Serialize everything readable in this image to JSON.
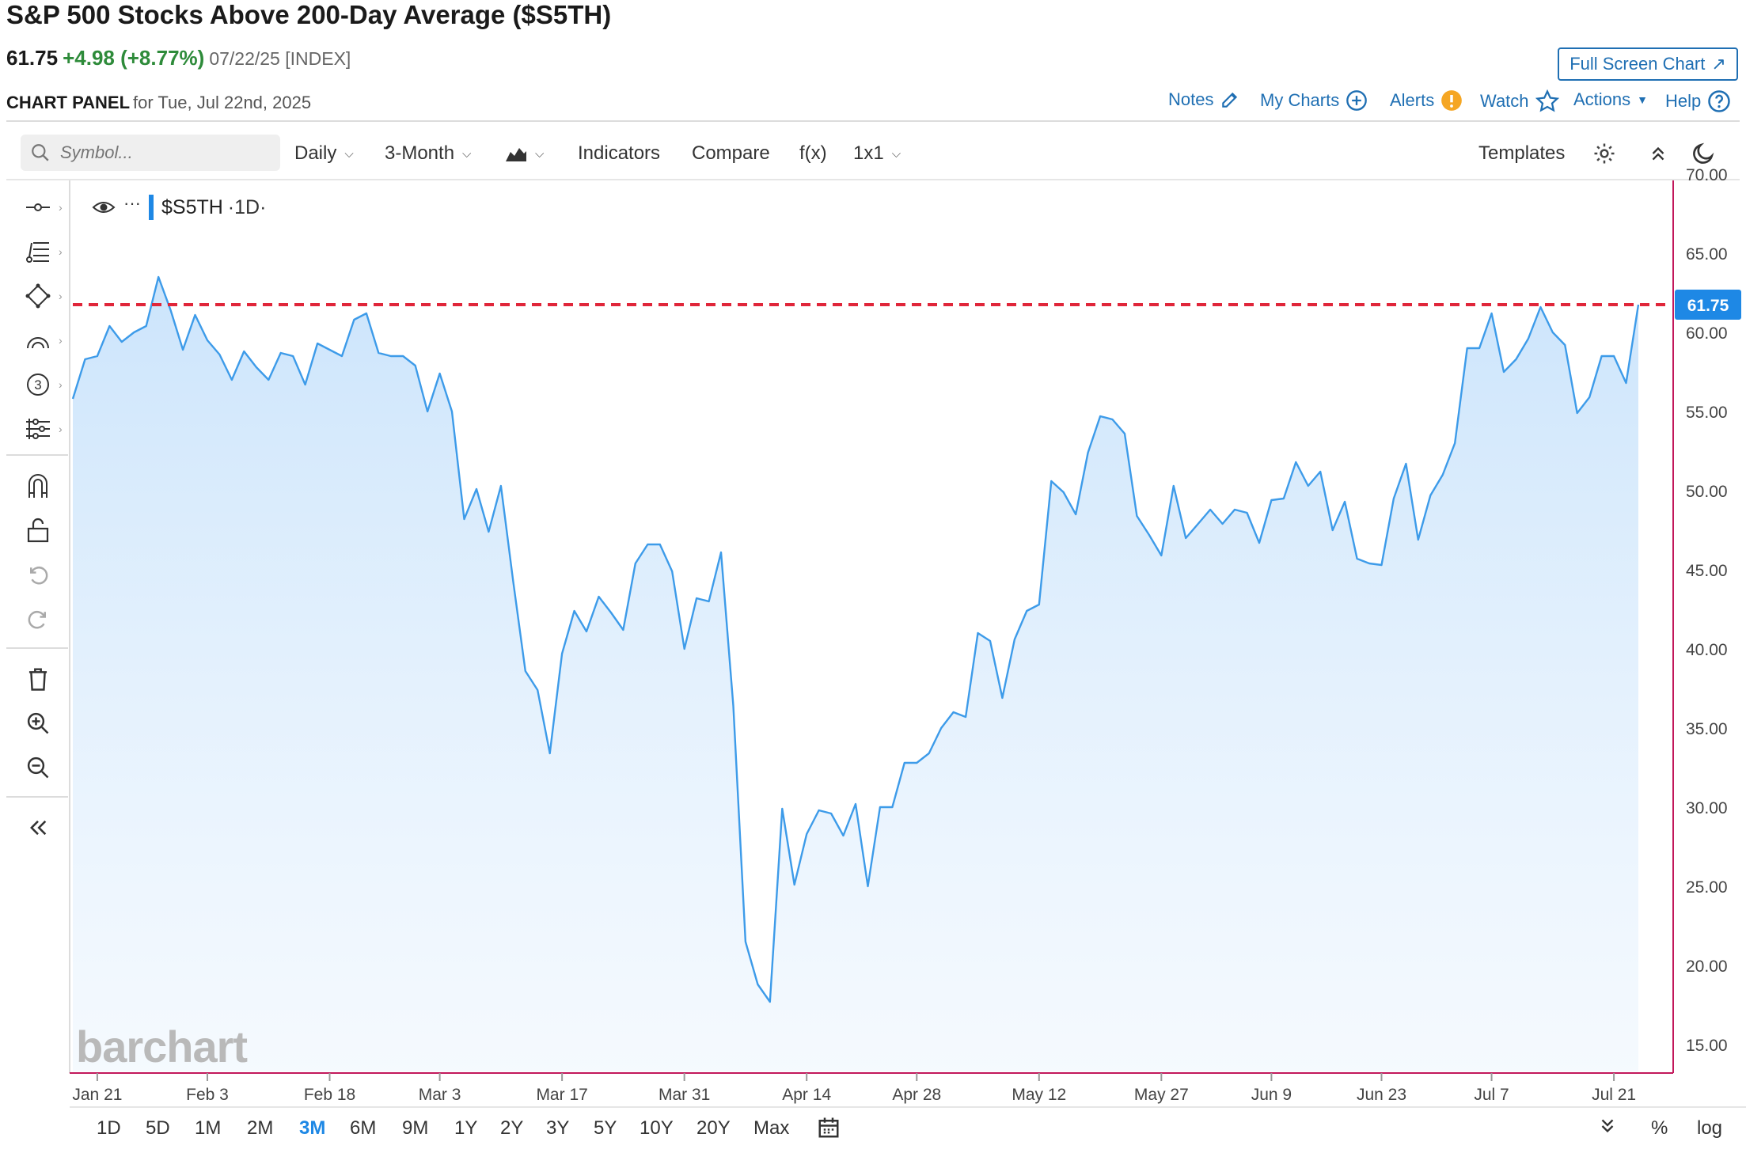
{
  "header": {
    "title": "S&P 500 Stocks Above 200-Day Average ($S5TH)",
    "last": "61.75",
    "change": "+4.98 (+8.77%)",
    "meta": "07/22/25 [INDEX]",
    "panel_label": "CHART PANEL",
    "panel_date": "for Tue, Jul 22nd, 2025",
    "fullscreen_label": "Full Screen Chart",
    "links": {
      "notes": "Notes",
      "my_charts": "My Charts",
      "alerts": "Alerts",
      "watch": "Watch",
      "actions": "Actions",
      "help": "Help"
    }
  },
  "toolbar": {
    "search_placeholder": "Symbol...",
    "interval": "Daily",
    "period": "3-Month",
    "indicators": "Indicators",
    "compare": "Compare",
    "fx": "f(x)",
    "layout": "1x1",
    "templates": "Templates"
  },
  "series_label": {
    "symbol": "$S5TH",
    "interval": "1D"
  },
  "watermark": "barchart",
  "ranges": [
    "1D",
    "5D",
    "1M",
    "2M",
    "3M",
    "6M",
    "9M",
    "1Y",
    "2Y",
    "3Y",
    "5Y",
    "10Y",
    "20Y",
    "Max"
  ],
  "active_range": "3M",
  "bottom_right": {
    "percent": "%",
    "log": "log"
  },
  "colors": {
    "line": "#3d9be9",
    "fill_top": "#cfe6fb",
    "ref_line": "#e0263a",
    "price_tag": "#1e88e5",
    "right_axis": "#c2185b",
    "accent_link": "#1f6fb3"
  },
  "chart_data": {
    "type": "area",
    "ylim": [
      15,
      70
    ],
    "yticks": [
      "70.00",
      "65.00",
      "60.00",
      "55.00",
      "50.00",
      "45.00",
      "40.00",
      "35.00",
      "30.00",
      "25.00",
      "20.00",
      "15.00"
    ],
    "x_ticks": [
      {
        "label": "Jan 21",
        "i": 2
      },
      {
        "label": "Feb 3",
        "i": 11
      },
      {
        "label": "Feb 18",
        "i": 21
      },
      {
        "label": "Mar 3",
        "i": 30
      },
      {
        "label": "Mar 17",
        "i": 40
      },
      {
        "label": "Mar 31",
        "i": 50
      },
      {
        "label": "Apr 14",
        "i": 60
      },
      {
        "label": "Apr 28",
        "i": 69
      },
      {
        "label": "May 12",
        "i": 79
      },
      {
        "label": "May 27",
        "i": 89
      },
      {
        "label": "Jun 9",
        "i": 98
      },
      {
        "label": "Jun 23",
        "i": 107
      },
      {
        "label": "Jul 7",
        "i": 116
      },
      {
        "label": "Jul 21",
        "i": 126
      }
    ],
    "last_value": "61.75",
    "reference_line": 61.75,
    "values": [
      55.8,
      58.3,
      58.5,
      60.4,
      59.4,
      60.0,
      60.4,
      63.5,
      61.4,
      58.9,
      61.1,
      59.5,
      58.6,
      57.0,
      58.8,
      57.8,
      57.0,
      58.7,
      58.5,
      56.7,
      59.3,
      58.9,
      58.5,
      60.8,
      61.2,
      58.7,
      58.5,
      58.5,
      57.9,
      55.0,
      57.4,
      55.0,
      48.2,
      50.1,
      47.4,
      50.3,
      44.3,
      38.6,
      37.4,
      33.4,
      39.7,
      42.4,
      41.1,
      43.3,
      42.3,
      41.2,
      45.4,
      46.6,
      46.6,
      44.9,
      40.0,
      43.2,
      43.0,
      46.1,
      36.4,
      21.5,
      18.8,
      17.7,
      29.9,
      25.1,
      28.3,
      29.8,
      29.6,
      28.2,
      30.2,
      25.0,
      30.0,
      30.0,
      32.8,
      32.8,
      33.4,
      35.0,
      36.0,
      35.7,
      41.0,
      40.5,
      36.9,
      40.6,
      42.4,
      42.8,
      50.6,
      49.9,
      48.5,
      52.4,
      54.7,
      54.5,
      53.6,
      48.4,
      47.2,
      45.9,
      50.3,
      47.0,
      47.9,
      48.8,
      47.9,
      48.8,
      48.6,
      46.7,
      49.4,
      49.5,
      51.8,
      50.3,
      51.2,
      47.5,
      49.3,
      45.7,
      45.4,
      45.3,
      49.5,
      51.7,
      46.9,
      49.7,
      51.0,
      53.0,
      59.0,
      59.0,
      61.2,
      57.5,
      58.3,
      59.6,
      61.6,
      60.0,
      59.2,
      54.9,
      55.9,
      58.5,
      58.5,
      56.8,
      61.75
    ]
  }
}
